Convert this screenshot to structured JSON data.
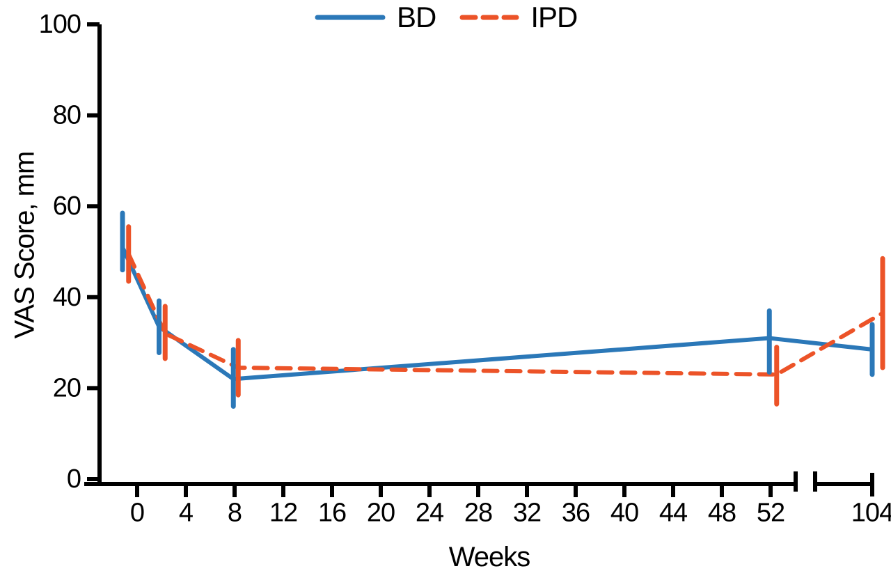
{
  "figure": {
    "background_color": "#ffffff",
    "axis_color": "#000000"
  },
  "chart_data": {
    "type": "line",
    "title": "",
    "xlabel": "Weeks",
    "ylabel": "VAS Score, mm",
    "ylim": [
      0,
      100
    ],
    "y_ticks": [
      0,
      20,
      40,
      60,
      80,
      100
    ],
    "x_ticks": [
      0,
      4,
      8,
      12,
      16,
      20,
      24,
      28,
      32,
      36,
      40,
      44,
      48,
      52
    ],
    "x_tick_after_break": 104,
    "axis_break": {
      "between": [
        52,
        104
      ]
    },
    "grid": false,
    "legend_position": "top-center",
    "error_bars": "vertical, no caps",
    "series": [
      {
        "name": "BD",
        "color": "#2b78b8",
        "line_style": "solid",
        "weeks": [
          0,
          2,
          8,
          52,
          104
        ],
        "week_offsets": [
          -1.2,
          -0.2,
          -0.1,
          -0.1,
          0
        ],
        "values": [
          51,
          33.5,
          22,
          31,
          28.5
        ],
        "ci_low": [
          46,
          27.8,
          16,
          23.5,
          23
        ],
        "ci_high": [
          58.5,
          39.2,
          28.5,
          37,
          34
        ]
      },
      {
        "name": "IPD",
        "color": "#ec5328",
        "line_style": "dashed",
        "weeks": [
          0,
          2,
          8,
          52,
          104
        ],
        "week_offsets": [
          -0.7,
          0.3,
          0.3,
          0.5,
          1
        ],
        "values": [
          49.5,
          32,
          24.5,
          23,
          36.5
        ],
        "ci_low": [
          43.5,
          26.5,
          18.5,
          16.5,
          24.5
        ],
        "ci_high": [
          55.5,
          38,
          30.5,
          29,
          48.5
        ]
      }
    ]
  }
}
